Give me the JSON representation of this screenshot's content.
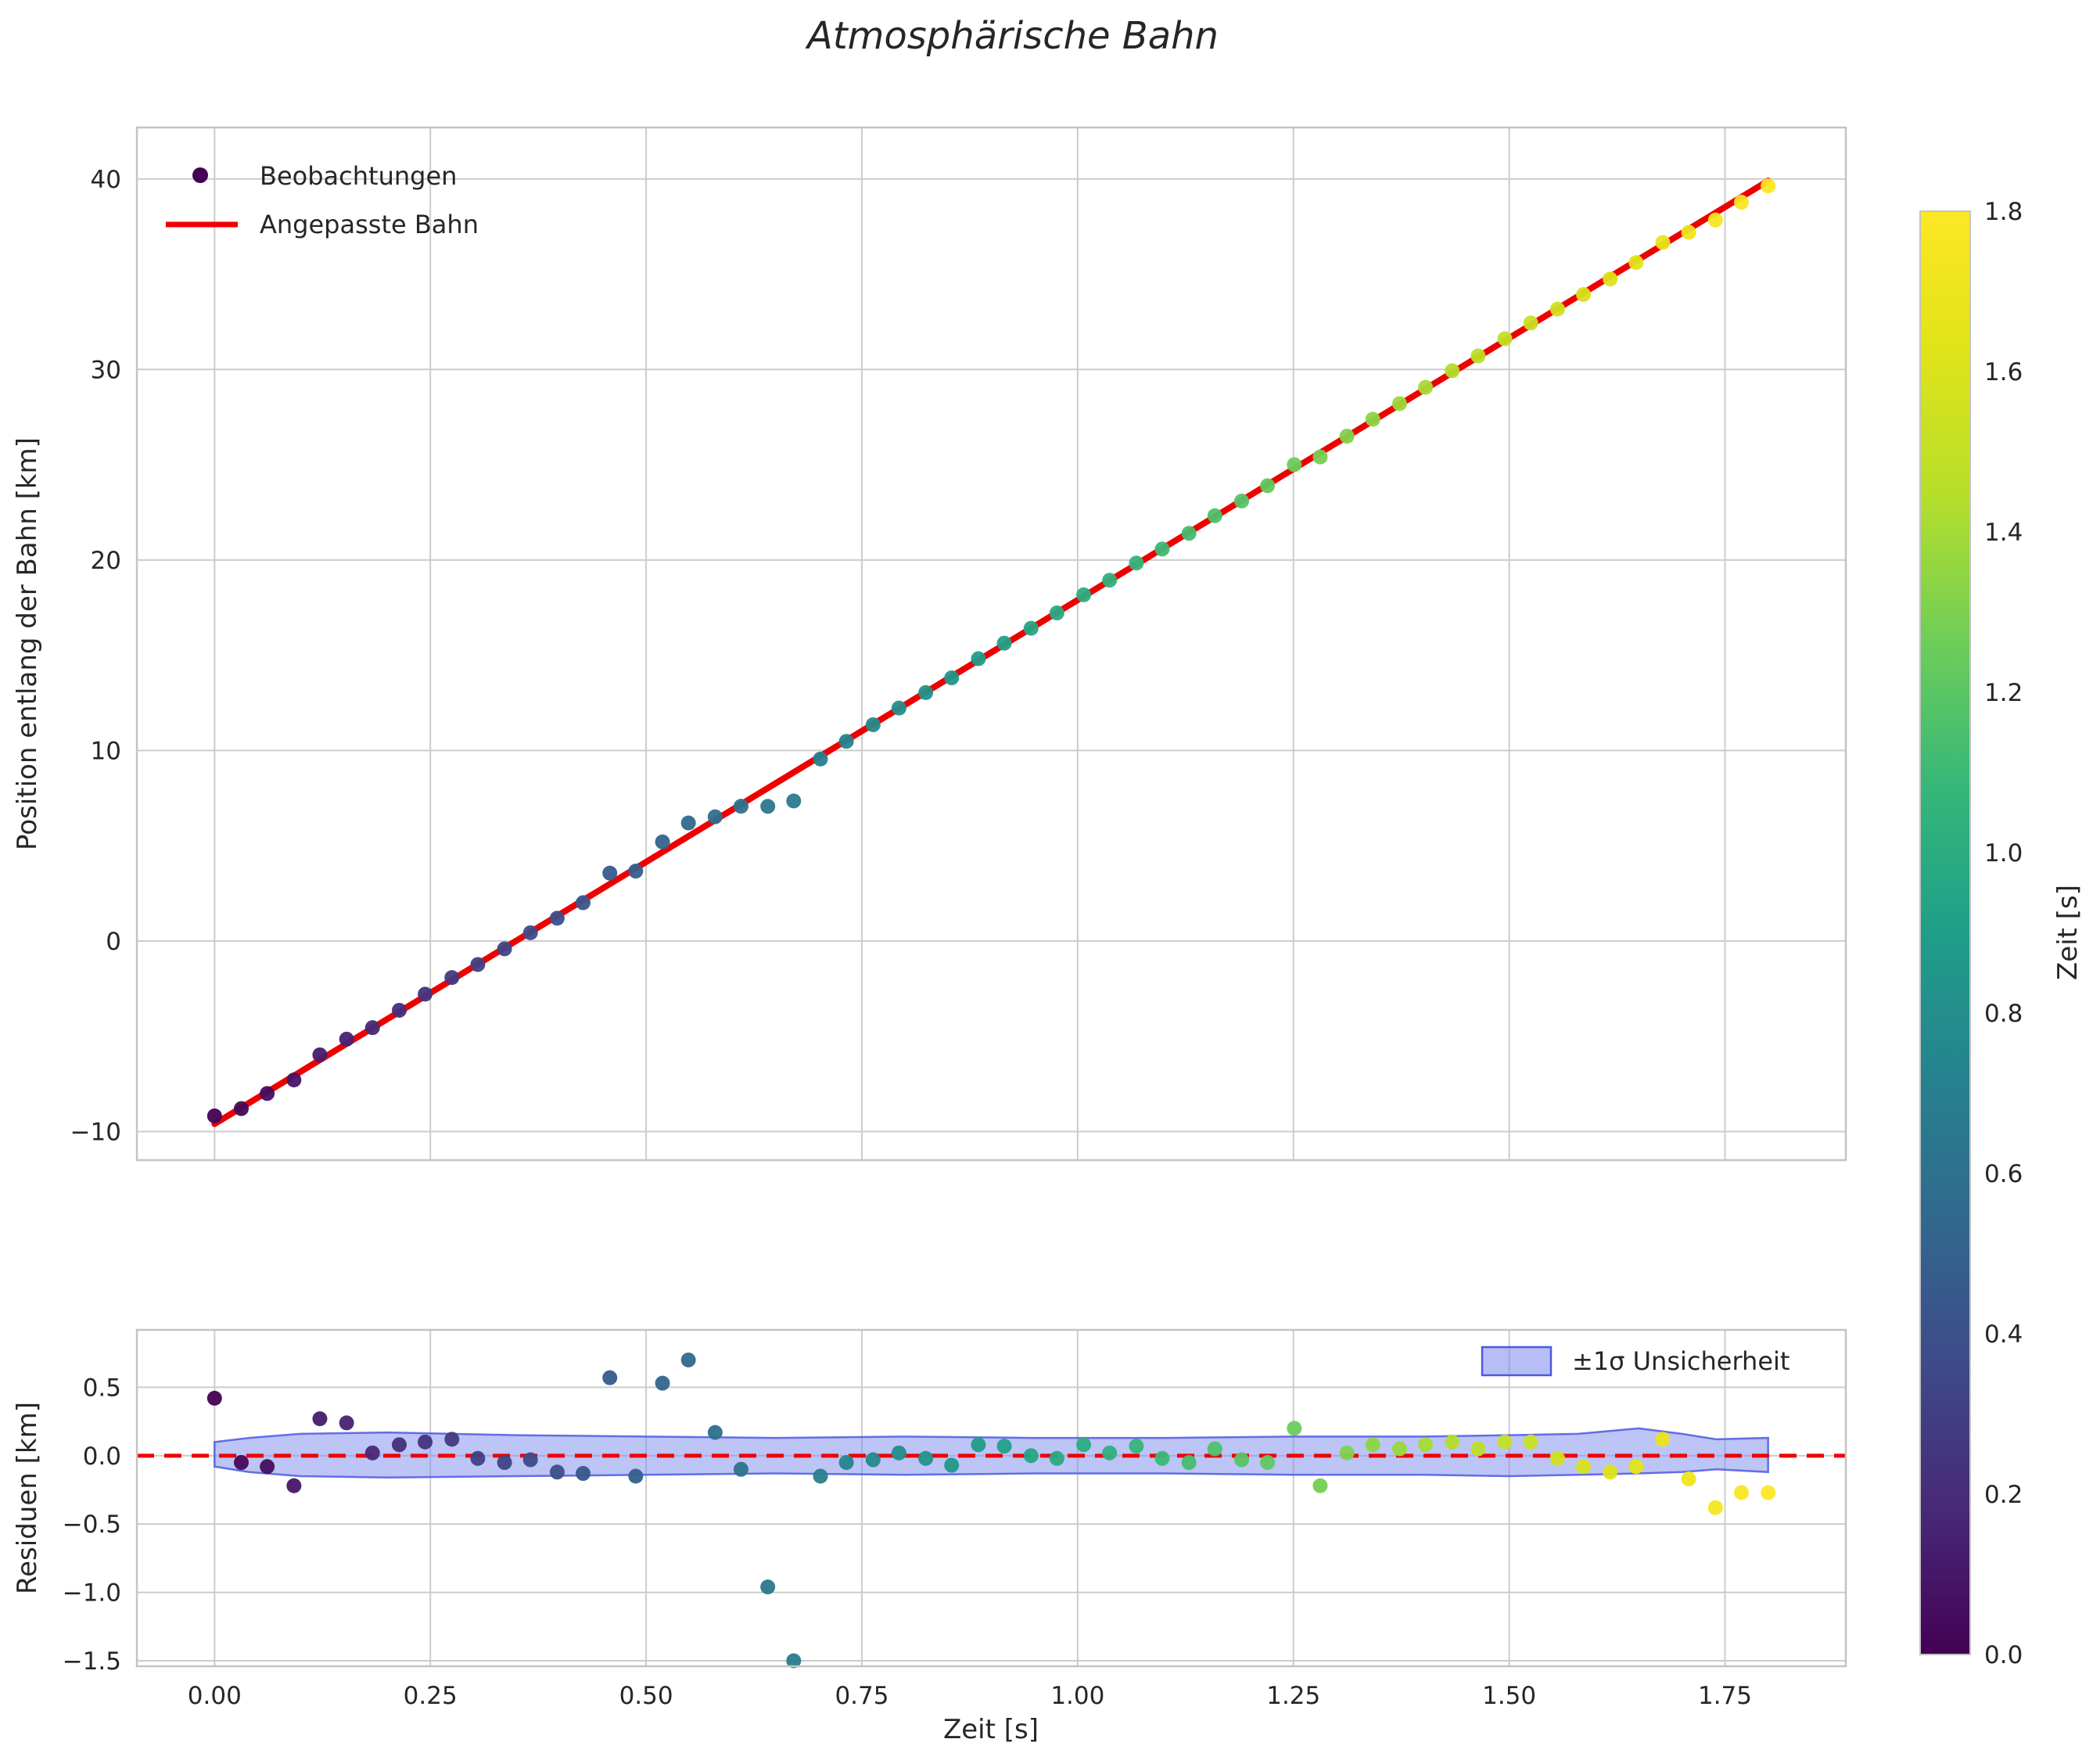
{
  "colors": {
    "fit_line": "#ee0000",
    "zero_line": "#ee0000",
    "band_fill": "#7c89ee",
    "band_edge": "#4c5ae0",
    "grid": "#cccccc",
    "spine": "#c4c4c4",
    "text": "#262626"
  },
  "colorbar": {
    "label": "Zeit [s]",
    "vmin": 0.0,
    "vmax": 1.8,
    "tick_values": [
      0.0,
      0.2,
      0.4,
      0.6,
      0.8,
      1.0,
      1.2,
      1.4,
      1.6,
      1.8
    ],
    "tick_labels": [
      "0.0",
      "0.2",
      "0.4",
      "0.6",
      "0.8",
      "1.0",
      "1.2",
      "1.4",
      "1.6",
      "1.8"
    ],
    "cmap_stops": [
      [
        0.0,
        "#440154"
      ],
      [
        0.1,
        "#482878"
      ],
      [
        0.2,
        "#3e4a89"
      ],
      [
        0.3,
        "#31688e"
      ],
      [
        0.4,
        "#26828e"
      ],
      [
        0.5,
        "#1f9e89"
      ],
      [
        0.6,
        "#35b779"
      ],
      [
        0.7,
        "#6dcd59"
      ],
      [
        0.8,
        "#b4de2c"
      ],
      [
        0.9,
        "#dfe318"
      ],
      [
        1.0,
        "#fde725"
      ]
    ]
  },
  "chart_data": [
    {
      "type": "scatter",
      "title": "Atmosphärische Bahn",
      "xlabel": "",
      "ylabel": "Position entlang der Bahn [km]",
      "legend": [
        "Beobachtungen",
        "Angepasste Bahn"
      ],
      "xlim": [
        -0.09,
        1.89
      ],
      "ylim": [
        -11.5,
        42.7
      ],
      "xticks": {
        "values": [
          0.0,
          0.25,
          0.5,
          0.75,
          1.0,
          1.25,
          1.5,
          1.75
        ],
        "labels": []
      },
      "yticks": {
        "values": [
          -10,
          0,
          10,
          20,
          30,
          40
        ],
        "labels": [
          "−10",
          "0",
          "10",
          "20",
          "30",
          "40"
        ]
      },
      "fit": {
        "slope": 27.5,
        "intercept": -9.6,
        "t_start": 0.0,
        "t_end": 1.8,
        "y_model": "slope*t + intercept"
      },
      "t": [
        0.0,
        0.031,
        0.061,
        0.092,
        0.122,
        0.153,
        0.183,
        0.214,
        0.244,
        0.275,
        0.305,
        0.336,
        0.366,
        0.397,
        0.427,
        0.458,
        0.488,
        0.519,
        0.549,
        0.58,
        0.61,
        0.641,
        0.671,
        0.702,
        0.732,
        0.763,
        0.793,
        0.824,
        0.854,
        0.885,
        0.915,
        0.946,
        0.976,
        1.007,
        1.037,
        1.068,
        1.098,
        1.129,
        1.159,
        1.19,
        1.22,
        1.251,
        1.281,
        1.312,
        1.342,
        1.373,
        1.403,
        1.434,
        1.464,
        1.495,
        1.525,
        1.556,
        1.586,
        1.617,
        1.647,
        1.678,
        1.708,
        1.739,
        1.769,
        1.8
      ]
    },
    {
      "type": "scatter",
      "title": "",
      "xlabel": "Zeit [s]",
      "ylabel": "Residuen [km]",
      "legend": [
        "±1σ Unsicherheit"
      ],
      "xlim": [
        -0.09,
        1.89
      ],
      "ylim": [
        -1.54,
        0.92
      ],
      "xticks": {
        "values": [
          0.0,
          0.25,
          0.5,
          0.75,
          1.0,
          1.25,
          1.5,
          1.75
        ],
        "labels": [
          "0.00",
          "0.25",
          "0.50",
          "0.75",
          "1.00",
          "1.25",
          "1.50",
          "1.75"
        ]
      },
      "yticks": {
        "values": [
          0.5,
          0.0,
          -0.5,
          -1.0,
          -1.5
        ],
        "labels": [
          "0.5",
          "0.0",
          "−0.5",
          "−1.0",
          "−1.5"
        ]
      },
      "zero_line": 0.0,
      "residuals": [
        0.42,
        -0.05,
        -0.08,
        -0.22,
        0.27,
        0.24,
        0.02,
        0.08,
        0.1,
        0.12,
        -0.02,
        -0.05,
        -0.03,
        -0.12,
        -0.13,
        0.57,
        -0.15,
        0.53,
        0.7,
        0.17,
        -0.1,
        -0.96,
        -1.5,
        -0.15,
        -0.05,
        -0.03,
        0.02,
        -0.02,
        -0.07,
        0.08,
        0.07,
        0.0,
        -0.02,
        0.08,
        0.02,
        0.07,
        -0.02,
        -0.05,
        0.05,
        -0.03,
        -0.05,
        0.2,
        -0.22,
        0.02,
        0.08,
        0.05,
        0.08,
        0.1,
        0.05,
        0.1,
        0.1,
        -0.02,
        -0.08,
        -0.12,
        -0.08,
        0.12,
        -0.17,
        -0.38,
        -0.27,
        -0.27
      ],
      "band": {
        "x": [
          0.0,
          0.04,
          0.1,
          0.2,
          0.35,
          0.5,
          0.65,
          0.8,
          0.95,
          1.1,
          1.25,
          1.4,
          1.5,
          1.58,
          1.65,
          1.7,
          1.74,
          1.8
        ],
        "upper": [
          0.1,
          0.13,
          0.16,
          0.17,
          0.15,
          0.14,
          0.13,
          0.14,
          0.13,
          0.13,
          0.14,
          0.14,
          0.15,
          0.16,
          0.2,
          0.16,
          0.12,
          0.13
        ],
        "lower": [
          -0.08,
          -0.12,
          -0.15,
          -0.16,
          -0.15,
          -0.14,
          -0.13,
          -0.14,
          -0.13,
          -0.13,
          -0.14,
          -0.14,
          -0.15,
          -0.14,
          -0.13,
          -0.12,
          -0.1,
          -0.12
        ]
      }
    }
  ]
}
